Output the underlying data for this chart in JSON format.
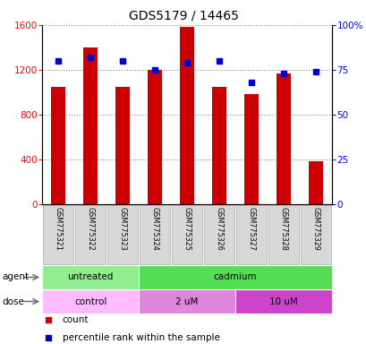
{
  "title": "GDS5179 / 14465",
  "samples": [
    "GSM775321",
    "GSM775322",
    "GSM775323",
    "GSM775324",
    "GSM775325",
    "GSM775326",
    "GSM775327",
    "GSM775328",
    "GSM775329"
  ],
  "counts": [
    1050,
    1400,
    1050,
    1200,
    1580,
    1050,
    980,
    1170,
    380
  ],
  "percentile_ranks": [
    80,
    82,
    80,
    75,
    79,
    80,
    68,
    73,
    74
  ],
  "ylim_left": [
    0,
    1600
  ],
  "ylim_right": [
    0,
    100
  ],
  "yticks_left": [
    0,
    400,
    800,
    1200,
    1600
  ],
  "ytick_labels_right": [
    "0",
    "25",
    "50",
    "75",
    "100%"
  ],
  "bar_color": "#cc0000",
  "dot_color": "#0000cc",
  "agent_groups": [
    {
      "label": "untreated",
      "start": 0,
      "end": 3,
      "color": "#90ee90"
    },
    {
      "label": "cadmium",
      "start": 3,
      "end": 9,
      "color": "#55dd55"
    }
  ],
  "dose_groups": [
    {
      "label": "control",
      "start": 0,
      "end": 3,
      "color": "#ffbbff"
    },
    {
      "label": "2 uM",
      "start": 3,
      "end": 6,
      "color": "#dd88dd"
    },
    {
      "label": "10 uM",
      "start": 6,
      "end": 9,
      "color": "#cc44cc"
    }
  ],
  "legend_count_color": "#cc0000",
  "legend_dot_color": "#0000cc",
  "grid_color": "#888888"
}
